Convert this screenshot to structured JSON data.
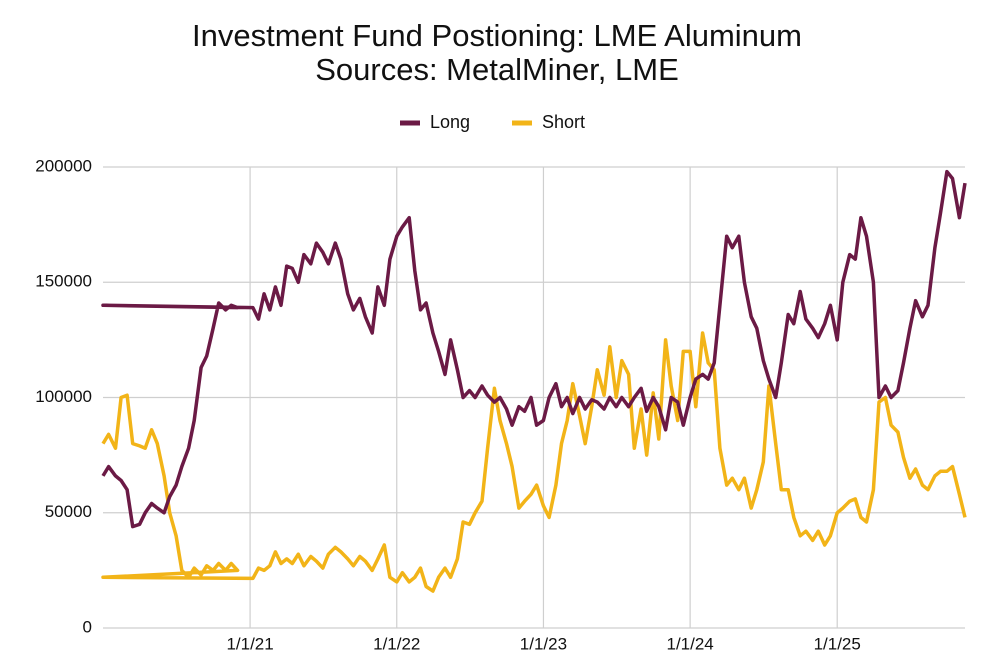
{
  "chart_data": {
    "type": "line",
    "title": "Investment Fund Postioning: LME Aluminum",
    "subtitle": "Sources: MetalMiner, LME",
    "x": [
      "1/1/20",
      "1/15/20",
      "2/1/20",
      "2/15/20",
      "3/1/20",
      "3/15/20",
      "4/1/20",
      "4/15/20",
      "5/1/20",
      "5/15/20",
      "6/1/20",
      "6/15/20",
      "7/1/20",
      "7/15/20",
      "8/1/20",
      "8/15/20",
      "9/1/20",
      "9/15/20",
      "10/1/20",
      "10/15/20",
      "11/1/20",
      "11/15/20",
      "12/1/20",
      "1/1/20",
      "1/8/21",
      "1/22/21",
      "2/5/21",
      "2/19/21",
      "3/5/21",
      "3/19/21",
      "4/2/21",
      "4/16/21",
      "5/1/21",
      "5/15/21",
      "6/1/21",
      "6/15/21",
      "7/1/21",
      "7/15/21",
      "8/1/21",
      "8/15/21",
      "9/1/21",
      "9/15/21",
      "10/1/21",
      "10/15/21",
      "11/1/21",
      "11/15/21",
      "12/1/21",
      "12/15/21",
      "1/1/22",
      "1/15/22",
      "2/1/22",
      "2/15/22",
      "3/1/22",
      "3/15/22",
      "4/1/22",
      "4/15/22",
      "5/1/22",
      "5/15/22",
      "6/1/22",
      "6/15/22",
      "7/1/22",
      "7/15/22",
      "8/1/22",
      "8/15/22",
      "9/1/22",
      "9/15/22",
      "10/1/22",
      "10/15/22",
      "11/1/22",
      "11/15/22",
      "12/1/22",
      "12/15/22",
      "1/1/23",
      "1/15/23",
      "2/1/23",
      "2/15/23",
      "3/1/23",
      "3/15/23",
      "4/1/23",
      "4/15/23",
      "5/1/23",
      "5/15/23",
      "6/1/23",
      "6/15/23",
      "7/1/23",
      "7/15/23",
      "8/1/23",
      "8/15/23",
      "9/1/23",
      "9/15/23",
      "10/1/23",
      "10/15/23",
      "11/1/23",
      "11/15/23",
      "12/1/23",
      "12/15/23",
      "1/1/24",
      "1/15/24",
      "2/1/24",
      "2/15/24",
      "3/1/24",
      "3/15/24",
      "4/1/24",
      "4/15/24",
      "5/1/24",
      "5/15/24",
      "6/1/24",
      "6/15/24",
      "7/1/24",
      "7/15/24",
      "8/1/24",
      "8/15/24",
      "9/1/24",
      "9/15/24",
      "10/1/24",
      "10/15/24",
      "11/1/24",
      "11/15/24",
      "12/1/24",
      "12/15/24",
      "1/1/25",
      "1/15/25",
      "2/1/25",
      "2/15/25",
      "3/1/25",
      "3/15/25",
      "4/1/25",
      "4/15/25",
      "5/1/25",
      "5/15/25",
      "6/1/25",
      "6/15/25",
      "7/1/25",
      "7/15/25",
      "8/1/25",
      "8/15/25",
      "9/1/25",
      "9/15/25",
      "10/1/25",
      "10/15/25",
      "11/1/25",
      "11/15/25"
    ],
    "series": [
      {
        "name": "Long",
        "color": "#6b1a45",
        "values": [
          66000,
          70000,
          66000,
          64000,
          60000,
          44000,
          45000,
          50000,
          54000,
          52000,
          50000,
          57000,
          62000,
          70000,
          78000,
          90000,
          113000,
          118000,
          130000,
          141000,
          138000,
          140000,
          139000,
          140000,
          139000,
          134000,
          145000,
          138000,
          148000,
          140000,
          157000,
          156000,
          150000,
          162000,
          158000,
          167000,
          163000,
          158000,
          167000,
          160000,
          145000,
          138000,
          143000,
          135000,
          128000,
          148000,
          140000,
          160000,
          170000,
          174000,
          178000,
          155000,
          138000,
          141000,
          128000,
          120000,
          110000,
          125000,
          112000,
          100000,
          103000,
          100000,
          105000,
          101000,
          98000,
          100000,
          95000,
          88000,
          96000,
          94000,
          100000,
          88000,
          90000,
          100000,
          106000,
          96000,
          100000,
          93000,
          100000,
          95000,
          99000,
          98000,
          95000,
          100000,
          96000,
          100000,
          96000,
          100000,
          104000,
          94000,
          100000,
          96000,
          86000,
          100000,
          98000,
          88000,
          100000,
          108000,
          110000,
          108000,
          115000,
          140000,
          170000,
          165000,
          170000,
          150000,
          135000,
          130000,
          116000,
          108000,
          100000,
          115000,
          136000,
          132000,
          146000,
          134000,
          130000,
          126000,
          132000,
          140000,
          125000,
          150000,
          162000,
          160000,
          178000,
          170000,
          150000,
          100000,
          105000,
          100000,
          103000,
          115000,
          130000,
          142000,
          135000,
          140000,
          165000,
          180000,
          198000,
          195000,
          178000,
          193000
        ]
      },
      {
        "name": "Short",
        "color": "#f2b418",
        "values": [
          80000,
          84000,
          78000,
          100000,
          101000,
          80000,
          79000,
          78000,
          86000,
          80000,
          66000,
          50000,
          40000,
          25000,
          22000,
          26000,
          23000,
          27000,
          25000,
          28000,
          25000,
          28000,
          25000,
          22000,
          21500,
          26000,
          25000,
          27000,
          33000,
          28000,
          30000,
          28000,
          32000,
          27000,
          31000,
          29000,
          26000,
          32000,
          35000,
          33000,
          30000,
          27000,
          31000,
          29000,
          25000,
          30000,
          36000,
          22000,
          20000,
          24000,
          20000,
          22000,
          26000,
          18000,
          16000,
          22000,
          26000,
          22000,
          30000,
          46000,
          45000,
          50000,
          55000,
          78000,
          104000,
          90000,
          80000,
          70000,
          52000,
          55000,
          58000,
          62000,
          53000,
          48000,
          62000,
          80000,
          90000,
          106000,
          92000,
          80000,
          96000,
          112000,
          101000,
          122000,
          100000,
          116000,
          110000,
          78000,
          95000,
          75000,
          102000,
          82000,
          125000,
          105000,
          90000,
          120000,
          120000,
          96000,
          128000,
          115000,
          112000,
          78000,
          62000,
          65000,
          60000,
          65000,
          52000,
          60000,
          72000,
          105000,
          80000,
          60000,
          60000,
          48000,
          40000,
          42000,
          38000,
          42000,
          36000,
          40000,
          50000,
          52000,
          55000,
          56000,
          48000,
          46000,
          60000,
          98000,
          100000,
          88000,
          85000,
          74000,
          65000,
          69000,
          62000,
          60000,
          66000,
          68000,
          68000,
          70000,
          58000,
          48000
        ]
      }
    ],
    "xlim": [
      "1/1/20",
      "11/15/25"
    ],
    "xticks": [
      "1/1/21",
      "1/1/22",
      "1/1/23",
      "1/1/24",
      "1/1/25"
    ],
    "ylim": [
      0,
      200000
    ],
    "yticks": [
      0,
      50000,
      100000,
      150000,
      200000
    ],
    "grid": true
  }
}
